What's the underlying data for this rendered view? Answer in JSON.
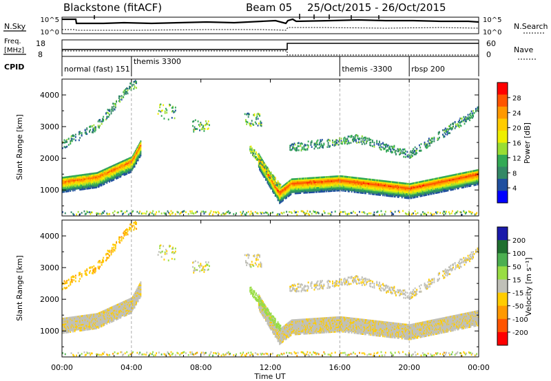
{
  "header": {
    "station": "Blackstone (fitACF)",
    "beam": "Beam 05",
    "date_range": "25/Oct/2015 - 26/Oct/2015"
  },
  "noise_panel": {
    "left_label": "N.Sky",
    "left_ticks": [
      "10^5",
      "10^0"
    ],
    "right_label": "N.Search",
    "right_ticks": [
      "10^5",
      "10^0"
    ]
  },
  "freq_panel": {
    "left_label_1": "Freq.",
    "left_label_2": "[MHz]",
    "left_ticks": [
      "18",
      "8"
    ],
    "right_label": "Nave",
    "right_ticks": [
      "60",
      "0"
    ]
  },
  "cpid_panel": {
    "label": "CPID",
    "segments": [
      {
        "text": "normal (fast) 151",
        "start_h": 0.0
      },
      {
        "text": "themis 3300",
        "start_h": 4.0
      },
      {
        "text": "themis -3300",
        "start_h": 16.0
      },
      {
        "text": "rbsp 200",
        "start_h": 20.0
      }
    ]
  },
  "x_axis": {
    "label": "Time UT",
    "range_h": [
      0,
      24
    ],
    "ticks": [
      "00:00",
      "04:00",
      "08:00",
      "12:00",
      "16:00",
      "20:00",
      "00:00"
    ]
  },
  "y_axis": {
    "label": "Slant Range [km]",
    "range_km": [
      180,
      4500
    ],
    "ticks": [
      "1000",
      "2000",
      "3000",
      "4000"
    ]
  },
  "power_colorbar": {
    "label": "Power [dB]",
    "ticks": [
      "28",
      "24",
      "20",
      "16",
      "12",
      "8",
      "4"
    ],
    "colors": [
      "#ff0000",
      "#ff5500",
      "#ff9900",
      "#ffcc00",
      "#eeee00",
      "#99dd33",
      "#33aa55",
      "#338866",
      "#1f4f9f",
      "#0000ff"
    ]
  },
  "velocity_colorbar": {
    "label": "Velocity [m s⁻¹]",
    "ticks": [
      "200",
      "100",
      "50",
      "15",
      "-15",
      "-50",
      "-100",
      "-200"
    ],
    "colors": [
      "#1a1aaa",
      "#1f6f2f",
      "#4caf50",
      "#99dd44",
      "#c0c0b8",
      "#ffcc00",
      "#ff9900",
      "#ff5500",
      "#ff0000"
    ]
  },
  "chart_data": {
    "type": "heatmap",
    "panels": [
      "Power [dB]",
      "Velocity [m s⁻¹]"
    ],
    "x_unit": "hours UT",
    "y_unit": "km",
    "features": [
      {
        "name": "main_band",
        "t_start_h": 0.0,
        "t_end_h": 24.0,
        "center_km_at": [
          [
            0.0,
            1250
          ],
          [
            2.0,
            1400
          ],
          [
            4.0,
            1900
          ],
          [
            4.5,
            2400
          ]
        ],
        "power_db_peak": 26
      },
      {
        "name": "main_band_late",
        "t_start_h": 11.3,
        "t_end_h": 24.0,
        "center_km_at": [
          [
            11.3,
            2000
          ],
          [
            12.5,
            900
          ],
          [
            13.2,
            1200
          ],
          [
            16.0,
            1300
          ],
          [
            20.0,
            1050
          ],
          [
            24.0,
            1500
          ]
        ],
        "power_db_peak": 28
      },
      {
        "name": "upper_echo_early",
        "t_start_h": 0.0,
        "t_end_h": 4.3,
        "center_km_at": [
          [
            0.0,
            2400
          ],
          [
            2.0,
            3000
          ],
          [
            4.0,
            4300
          ]
        ],
        "power_db_peak": 10
      },
      {
        "name": "upper_echo_late",
        "t_start_h": 13.0,
        "t_end_h": 24.0,
        "center_km_at": [
          [
            13.0,
            2300
          ],
          [
            17.0,
            2600
          ],
          [
            20.0,
            2100
          ],
          [
            24.0,
            3500
          ]
        ],
        "power_db_peak": 10
      }
    ],
    "velocity_summary": {
      "main_band_ms": -10,
      "upper_echo_early_ms": -40,
      "descending_echo_12UT_ms": 30
    }
  }
}
